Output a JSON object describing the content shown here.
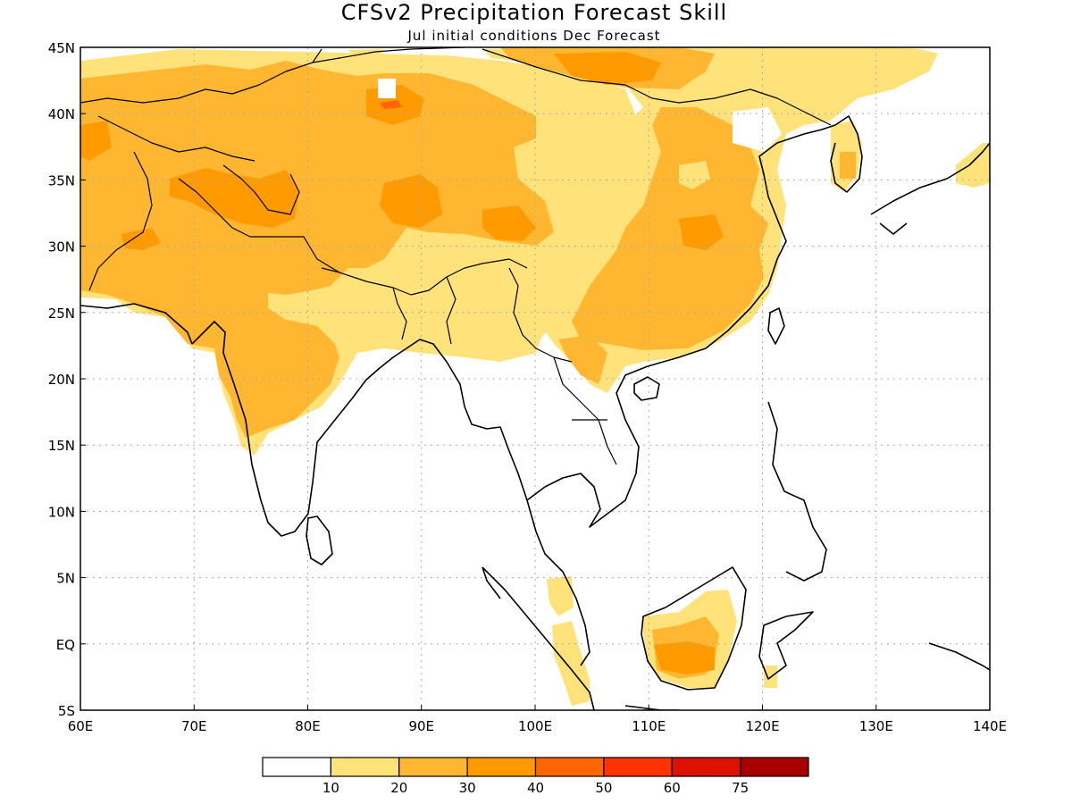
{
  "title": "CFSv2 Precipitation Forecast Skill",
  "subtitle": "Jul initial conditions   Dec Forecast",
  "lon_ticks": [
    {
      "value": 60,
      "label": "60E"
    },
    {
      "value": 70,
      "label": "70E"
    },
    {
      "value": 80,
      "label": "80E"
    },
    {
      "value": 90,
      "label": "90E"
    },
    {
      "value": 100,
      "label": "100E"
    },
    {
      "value": 110,
      "label": "110E"
    },
    {
      "value": 120,
      "label": "120E"
    },
    {
      "value": 130,
      "label": "130E"
    },
    {
      "value": 140,
      "label": "140E"
    }
  ],
  "lat_ticks": [
    {
      "value": 45,
      "label": "45N"
    },
    {
      "value": 40,
      "label": "40N"
    },
    {
      "value": 35,
      "label": "35N"
    },
    {
      "value": 30,
      "label": "30N"
    },
    {
      "value": 25,
      "label": "25N"
    },
    {
      "value": 20,
      "label": "20N"
    },
    {
      "value": 15,
      "label": "15N"
    },
    {
      "value": 10,
      "label": "10N"
    },
    {
      "value": 5,
      "label": "5N"
    },
    {
      "value": 0,
      "label": "EQ"
    },
    {
      "value": -5,
      "label": "5S"
    }
  ],
  "lon_range": [
    60,
    140
  ],
  "lat_range": [
    -5,
    45
  ],
  "legend": {
    "colors": [
      "#ffffff",
      "#ffe37a",
      "#ffb631",
      "#ff9a00",
      "#ff6600",
      "#ff3300",
      "#dd1100",
      "#a80000"
    ],
    "labels": [
      "10",
      "20",
      "30",
      "40",
      "50",
      "60",
      "75"
    ]
  },
  "colors": {
    "c10_20": "#ffe37a",
    "c20_30": "#ffb631",
    "c30_40": "#ff9a00",
    "c40_50": "#ff6600"
  }
}
